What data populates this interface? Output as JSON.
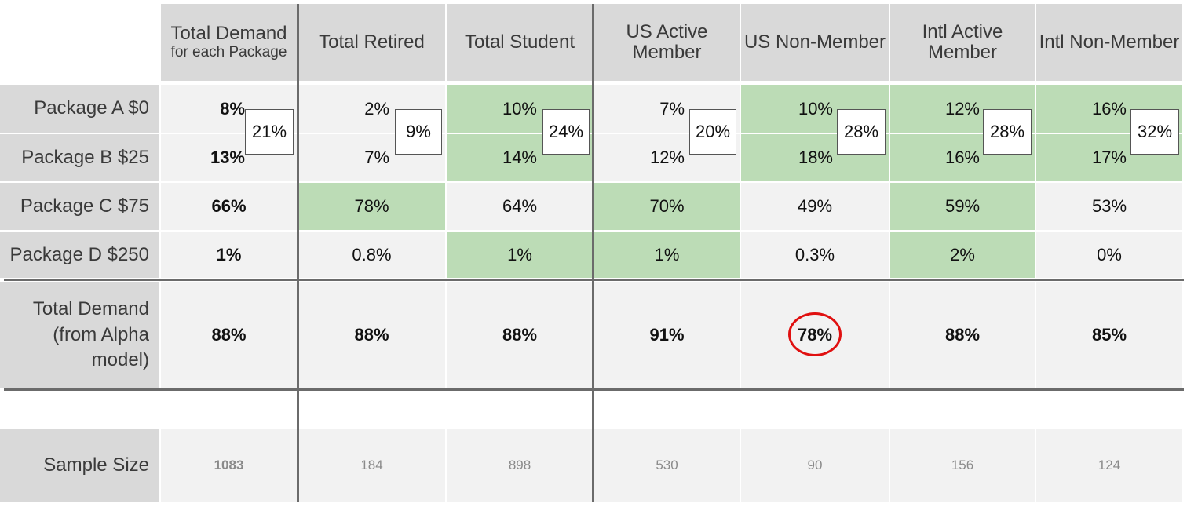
{
  "columns": [
    {
      "title": "Total Demand",
      "subtitle": "for each Package"
    },
    {
      "title": "Total Retired",
      "subtitle": ""
    },
    {
      "title": "Total Student",
      "subtitle": ""
    },
    {
      "title": "US Active Member",
      "subtitle": ""
    },
    {
      "title": "US Non-Member",
      "subtitle": ""
    },
    {
      "title": "Intl Active Member",
      "subtitle": ""
    },
    {
      "title": "Intl Non-Member",
      "subtitle": ""
    }
  ],
  "rows": {
    "package_a": {
      "label": "Package A $0",
      "values": [
        "8%",
        "2%",
        "10%",
        "7%",
        "10%",
        "12%",
        "16%"
      ]
    },
    "package_b": {
      "label": "Package B $25",
      "values": [
        "13%",
        "7%",
        "14%",
        "12%",
        "18%",
        "16%",
        "17%"
      ]
    },
    "package_c": {
      "label": "Package C $75",
      "values": [
        "66%",
        "78%",
        "64%",
        "70%",
        "49%",
        "59%",
        "53%"
      ]
    },
    "package_d": {
      "label": "Package D $250",
      "values": [
        "1%",
        "0.8%",
        "1%",
        "1%",
        "0.3%",
        "2%",
        "0%"
      ]
    },
    "total": {
      "label": "Total Demand (from Alpha model)",
      "values": [
        "88%",
        "88%",
        "88%",
        "91%",
        "78%",
        "88%",
        "85%"
      ]
    },
    "sample": {
      "label": "Sample Size",
      "values": [
        "1083",
        "184",
        "898",
        "530",
        "90",
        "156",
        "124"
      ]
    }
  },
  "a_plus_b_totals": [
    "21%",
    "9%",
    "24%",
    "20%",
    "28%",
    "28%",
    "32%"
  ],
  "highlights": {
    "green_color": "#bcdcb6",
    "green_cells": {
      "package_a": [
        false,
        false,
        true,
        false,
        true,
        true,
        true
      ],
      "package_b": [
        false,
        false,
        true,
        false,
        true,
        true,
        true
      ],
      "package_c": [
        false,
        true,
        false,
        true,
        false,
        true,
        false
      ],
      "package_d": [
        false,
        false,
        true,
        true,
        false,
        true,
        false
      ]
    },
    "circled_total_column": 4,
    "circle_color": "#e01010"
  },
  "chart_data": {
    "type": "table",
    "categories": [
      "Total Demand for each Package",
      "Total Retired",
      "Total Student",
      "US Active Member",
      "US Non-Member",
      "Intl Active Member",
      "Intl Non-Member"
    ],
    "series": [
      {
        "name": "Package A $0",
        "values": [
          8,
          2,
          10,
          7,
          10,
          12,
          16
        ]
      },
      {
        "name": "Package B $25",
        "values": [
          13,
          7,
          14,
          12,
          18,
          16,
          17
        ]
      },
      {
        "name": "Package C $75",
        "values": [
          66,
          78,
          64,
          70,
          49,
          59,
          53
        ]
      },
      {
        "name": "Package D $250",
        "values": [
          1,
          0.8,
          1,
          1,
          0.3,
          2,
          0
        ]
      },
      {
        "name": "Total Demand (from Alpha model)",
        "values": [
          88,
          88,
          88,
          91,
          78,
          88,
          85
        ]
      },
      {
        "name": "Sample Size",
        "values": [
          1083,
          184,
          898,
          530,
          90,
          156,
          124
        ]
      }
    ],
    "package_a_b_combined": [
      21,
      9,
      24,
      20,
      28,
      28,
      32
    ]
  }
}
